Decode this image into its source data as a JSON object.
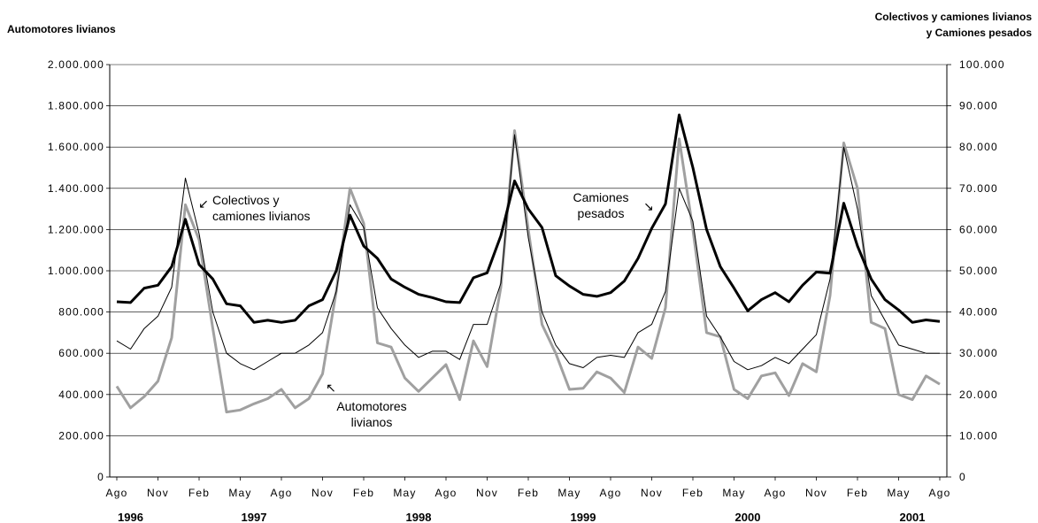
{
  "chart_data": {
    "type": "line",
    "title": "",
    "y_left": {
      "label": "Automotores livianos",
      "range": [
        0,
        2000000
      ],
      "ticks": [
        "0",
        "200.000",
        "400.000",
        "600.000",
        "800.000",
        "1.000.000",
        "1.200.000",
        "1.400.000",
        "1.600.000",
        "1.800.000",
        "2.000.000"
      ]
    },
    "y_right": {
      "label_lines": [
        "Colectivos y camiones livianos",
        "y Camiones pesados"
      ],
      "range": [
        0,
        100000
      ],
      "ticks": [
        "0",
        "10.000",
        "20.000",
        "30.000",
        "40.000",
        "50.000",
        "60.000",
        "70.000",
        "80.000",
        "90.000",
        "100.000"
      ]
    },
    "x_tick_labels": [
      "Ago",
      "Nov",
      "Feb",
      "May",
      "Ago",
      "Nov",
      "Feb",
      "May",
      "Ago",
      "Nov",
      "Feb",
      "May",
      "Ago",
      "Nov",
      "Feb",
      "May",
      "Ago",
      "Nov",
      "Feb",
      "May",
      "Ago"
    ],
    "year_labels": [
      {
        "year": "1996",
        "month_index": 1
      },
      {
        "year": "1997",
        "month_index": 10
      },
      {
        "year": "1998",
        "month_index": 22
      },
      {
        "year": "1999",
        "month_index": 34
      },
      {
        "year": "2000",
        "month_index": 46
      },
      {
        "year": "2001",
        "month_index": 58
      }
    ],
    "period_start": "1996-08",
    "period_end": "2001-08",
    "grid": "horizontal",
    "series": [
      {
        "key": "automotores",
        "axis": "left",
        "color": "#a0a0a0",
        "values": [
          440000,
          335000,
          390000,
          465000,
          675000,
          1320000,
          1150000,
          720000,
          315000,
          325000,
          355000,
          380000,
          425000,
          335000,
          380000,
          500000,
          900000,
          1400000,
          1230000,
          650000,
          630000,
          480000,
          415000,
          480000,
          545000,
          375000,
          660000,
          535000,
          920000,
          1680000,
          1200000,
          740000,
          600000,
          425000,
          430000,
          510000,
          480000,
          410000,
          630000,
          575000,
          820000,
          1640000,
          1200000,
          700000,
          680000,
          425000,
          380000,
          490000,
          505000,
          395000,
          550000,
          510000,
          880000,
          1620000,
          1400000,
          750000,
          720000,
          400000,
          375000,
          490000,
          450000
        ]
      },
      {
        "key": "colectivos",
        "axis": "right",
        "color": "#000000",
        "values": [
          33000,
          31000,
          36000,
          39000,
          46000,
          72500,
          59000,
          40000,
          30000,
          27500,
          26000,
          28000,
          30000,
          30000,
          32000,
          35000,
          45000,
          66000,
          60500,
          41000,
          36000,
          32000,
          29000,
          30500,
          30500,
          28500,
          37000,
          37000,
          47000,
          83000,
          58000,
          40000,
          32000,
          27500,
          26500,
          29000,
          29500,
          29000,
          35000,
          37000,
          45000,
          70000,
          62000,
          39000,
          34000,
          28000,
          26000,
          27000,
          29000,
          27500,
          31000,
          34500,
          48000,
          80000,
          65000,
          44000,
          38000,
          32000,
          31000,
          30000,
          30000
        ]
      },
      {
        "key": "pesados",
        "axis": "right",
        "color": "#000000",
        "values": [
          42500,
          42300,
          45800,
          46500,
          51000,
          62500,
          51500,
          48000,
          42000,
          41500,
          37500,
          38000,
          37500,
          38000,
          41500,
          43000,
          50000,
          63500,
          56000,
          53000,
          48000,
          46000,
          44300,
          43500,
          42500,
          42300,
          48300,
          49500,
          58500,
          71800,
          65000,
          60500,
          48800,
          46300,
          44300,
          43800,
          44700,
          47500,
          53000,
          60300,
          66200,
          87800,
          75000,
          60000,
          51000,
          45800,
          40300,
          43000,
          44700,
          42500,
          46500,
          49700,
          49400,
          66400,
          56000,
          48000,
          43000,
          40500,
          37500,
          38100,
          37700
        ]
      }
    ],
    "annotations": [
      {
        "key": "colectivos",
        "lines": [
          "Colectivos y",
          "camiones livianos"
        ],
        "arrow": "↙"
      },
      {
        "key": "automotores",
        "lines": [
          "Automotores",
          "livianos"
        ],
        "arrow": "↖"
      },
      {
        "key": "pesados",
        "lines": [
          "Camiones",
          "pesados"
        ],
        "arrow": "↘"
      }
    ]
  }
}
